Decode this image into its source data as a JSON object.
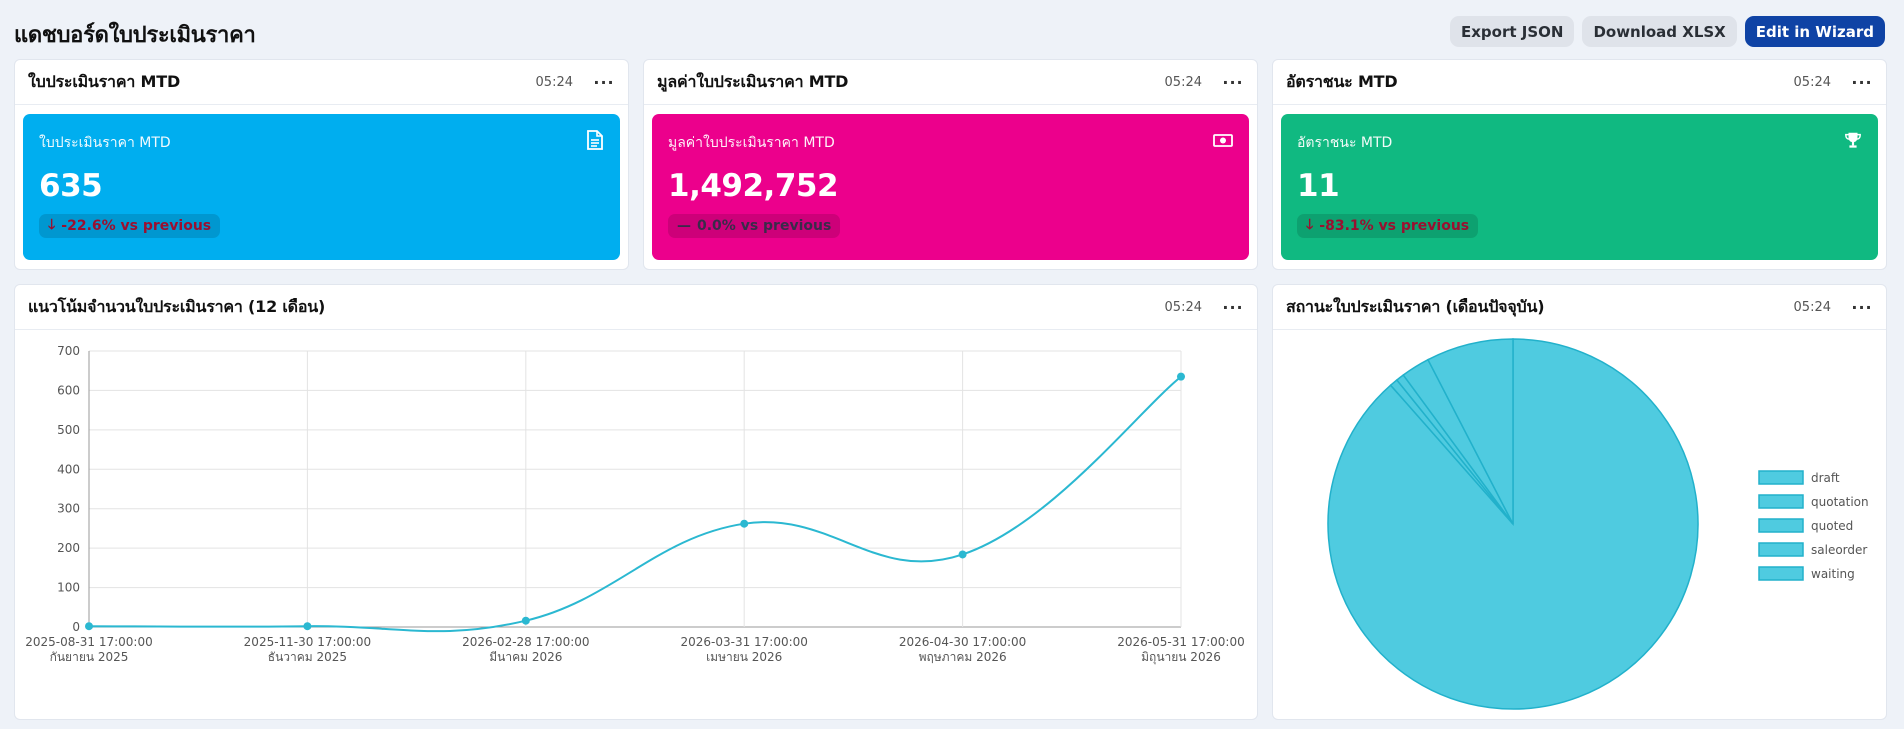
{
  "page": {
    "title": "แดชบอร์ดใบประเมินราคา",
    "actions": {
      "export_json": "Export JSON",
      "download_xlsx": "Download XLSX",
      "edit_wizard": "Edit in Wizard"
    }
  },
  "colors": {
    "kpi1": "#00aeef",
    "kpi2": "#ec008c",
    "kpi3": "#10b981",
    "line": "#2bb8d1",
    "pie": "#4fcbe0",
    "primary": "#0f43a5"
  },
  "kpis": [
    {
      "card_title": "ใบประเมินราคา MTD",
      "time": "05:24",
      "menu": "···",
      "label": "ใบประเมินราคา MTD",
      "value": "635",
      "icon": "document-icon",
      "trend": "down",
      "change": "-22.6% vs previous"
    },
    {
      "card_title": "มูลค่าใบประเมินราคา MTD",
      "time": "05:24",
      "menu": "···",
      "label": "มูลค่าใบประเมินราคา MTD",
      "value": "1,492,752",
      "icon": "money-icon",
      "trend": "flat",
      "change": "0.0% vs previous"
    },
    {
      "card_title": "อัตราชนะ MTD",
      "time": "05:24",
      "menu": "···",
      "label": "อัตราชนะ MTD",
      "value": "11",
      "icon": "trophy-icon",
      "trend": "down",
      "change": "-83.1% vs previous"
    }
  ],
  "trend_card": {
    "title": "แนวโน้มจำนวนใบประเมินราคา (12 เดือน)",
    "time": "05:24",
    "menu": "···"
  },
  "status_card": {
    "title": "สถานะใบประเมินราคา (เดือนปัจจุบัน)",
    "time": "05:24",
    "menu": "···"
  },
  "chart_data": [
    {
      "type": "line",
      "x": [
        "2025-08-31 17:00:00",
        "2025-11-30 17:00:00",
        "2026-02-28 17:00:00",
        "2026-03-31 17:00:00",
        "2026-04-30 17:00:00",
        "2026-05-31 17:00:00"
      ],
      "x_sublabels": [
        "กันยายน 2025",
        "ธันวาคม 2025",
        "มีนาคม 2026",
        "เมษายน 2026",
        "พฤษภาคม 2026",
        "มิถุนายน 2026"
      ],
      "series": [
        {
          "values": [
            2,
            2,
            16,
            262,
            184,
            635
          ]
        }
      ],
      "ylim": [
        0,
        700
      ],
      "yticks": [
        0,
        100,
        200,
        300,
        400,
        500,
        600,
        700
      ],
      "grid": true
    },
    {
      "type": "pie",
      "labels": [
        "draft",
        "quotation",
        "quoted",
        "saleorder",
        "waiting"
      ],
      "values": [
        88.5,
        0.7,
        0.7,
        2.5,
        7.6
      ],
      "legend": "right"
    }
  ]
}
